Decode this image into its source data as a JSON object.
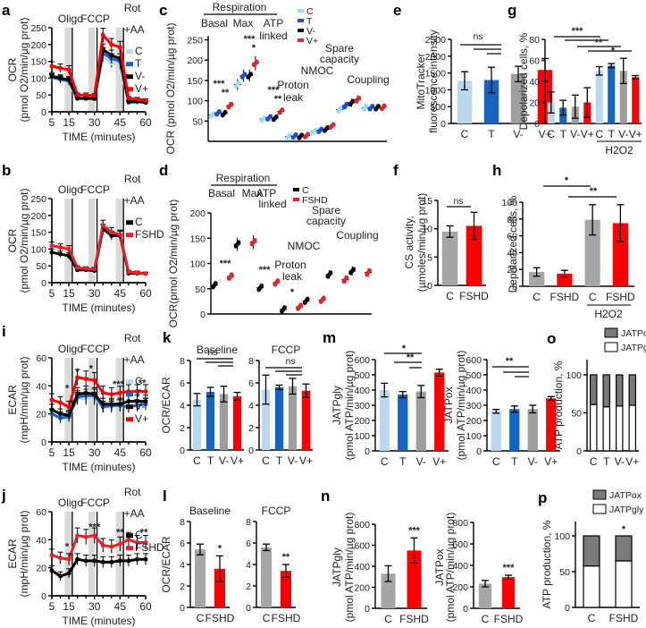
{
  "colors": {
    "C": "#bcd8ef",
    "T": "#1565c0",
    "Vm": "#9e9e9e",
    "Vp": "#ff0000",
    "Cgray": "#a6a6a6",
    "FSHD": "#ff0000",
    "black": "#000000",
    "red": "#e8212a",
    "cyan": "#8fe3f0",
    "blue": "#1f4fd1",
    "JATPox": "#7a7a7a",
    "JATPgly": "#ffffff",
    "shade": "#d9d9d9"
  },
  "chart_data": [
    {
      "id": "a",
      "panel": "a",
      "type": "line",
      "xlabel": "TIME (minutes)",
      "ylabel": "OCR",
      "ylabel2": "(pmol O2/min/µg prot)",
      "xticks": [
        5,
        15,
        30,
        45,
        60
      ],
      "yticks": [
        0,
        50,
        100,
        150,
        200,
        250
      ],
      "xlim": [
        5,
        60
      ],
      "ylim": [
        0,
        250
      ],
      "injections": [
        {
          "label": "Oligo",
          "x": 17.5
        },
        {
          "label": "FCCP",
          "x": 32.5
        },
        {
          "label": "Rot",
          "label2": "+AA",
          "x": 47.5
        }
      ],
      "legend": [
        "C",
        "T",
        "V-",
        "V+"
      ],
      "x": [
        5,
        10,
        15,
        20,
        25,
        30,
        35,
        40,
        45,
        50,
        55,
        60
      ],
      "series": [
        {
          "name": "C",
          "color": "#bcd8ef",
          "values": [
            100,
            95,
            88,
            38,
            38,
            38,
            165,
            145,
            140,
            28,
            28,
            27
          ]
        },
        {
          "name": "T",
          "color": "#1565c0",
          "values": [
            103,
            97,
            92,
            40,
            40,
            40,
            175,
            158,
            150,
            28,
            30,
            28
          ]
        },
        {
          "name": "V-",
          "color": "#000000",
          "values": [
            106,
            100,
            95,
            40,
            40,
            39,
            185,
            168,
            158,
            30,
            32,
            28
          ]
        },
        {
          "name": "V+",
          "color": "#ff0000",
          "values": [
            136,
            130,
            125,
            50,
            50,
            48,
            228,
            200,
            192,
            40,
            38,
            34
          ]
        }
      ]
    },
    {
      "id": "b",
      "panel": "b",
      "type": "line",
      "xlabel": "TIME (minutes)",
      "ylabel": "OCR",
      "ylabel2": "(pmol O2/min/µg prot)",
      "xticks": [
        5,
        15,
        30,
        45,
        60
      ],
      "yticks": [
        0,
        50,
        100,
        150,
        200,
        250
      ],
      "xlim": [
        5,
        60
      ],
      "ylim": [
        0,
        250
      ],
      "injections": [
        {
          "label": "Oligo",
          "x": 17.5
        },
        {
          "label": "FCCP",
          "x": 32.5
        },
        {
          "label": "Rot",
          "label2": "+AA",
          "x": 47.5
        }
      ],
      "legend": [
        "C",
        "FSHD"
      ],
      "x": [
        5,
        10,
        15,
        20,
        25,
        30,
        35,
        40,
        45,
        50,
        55,
        60
      ],
      "series": [
        {
          "name": "C",
          "color": "#000000",
          "values": [
            90,
            85,
            80,
            38,
            38,
            36,
            160,
            140,
            140,
            28,
            28,
            27
          ]
        },
        {
          "name": "FSHD",
          "color": "#e8212a",
          "values": [
            110,
            105,
            100,
            45,
            42,
            40,
            170,
            150,
            143,
            32,
            30,
            27
          ]
        }
      ]
    },
    {
      "id": "c",
      "panel": "c",
      "type": "scatter",
      "ylabel": "OCR (pmol O2/min/µg prot)",
      "yticks": [
        50,
        100,
        150,
        200,
        250
      ],
      "ylim": [
        0,
        260
      ],
      "header": "Respiration",
      "legend": [
        "C",
        "T",
        "V-",
        "V+"
      ],
      "groups": [
        {
          "label": "Basal",
          "means": [
            65,
            70,
            68,
            88
          ],
          "sig": [
            "***",
            "**"
          ]
        },
        {
          "label": "Max",
          "means": [
            140,
            162,
            162,
            192
          ],
          "sig": [
            "***",
            "*"
          ]
        },
        {
          "label": "ATP linked",
          "means": [
            55,
            58,
            57,
            74
          ],
          "sig": [
            "***",
            "**"
          ]
        },
        {
          "label": "Proton leak",
          "means": [
            12,
            13,
            12,
            14
          ]
        },
        {
          "label": "NMOC",
          "means": [
            24,
            27,
            30,
            38
          ]
        },
        {
          "label": "Spare capacity",
          "means": [
            78,
            88,
            95,
            103
          ]
        },
        {
          "label": "Coupling",
          "means": [
            83,
            83,
            83,
            84
          ]
        }
      ]
    },
    {
      "id": "d",
      "panel": "d",
      "type": "scatter",
      "ylabel": "OCR(pmol O2/min/µg prot)",
      "yticks": [
        0,
        50,
        100,
        150,
        200
      ],
      "ylim": [
        0,
        200
      ],
      "header": "Respiration",
      "legend": [
        "C",
        "FSHD"
      ],
      "groups": [
        {
          "label": "Basal",
          "means": [
            57,
            74
          ],
          "sig": "***"
        },
        {
          "label": "Max",
          "means": [
            138,
            142
          ]
        },
        {
          "label": "ATP linked",
          "means": [
            52,
            62
          ],
          "sig": "***"
        },
        {
          "label": "Proton leak",
          "means": [
            9,
            14
          ],
          "sig": "*"
        },
        {
          "label": "NMOC",
          "means": [
            26,
            28
          ]
        },
        {
          "label": "Spare capacity",
          "means": [
            78,
            68
          ]
        },
        {
          "label": "Coupling",
          "means": [
            85,
            82
          ]
        }
      ]
    },
    {
      "id": "e",
      "panel": "e",
      "type": "bar",
      "ylabel": "MitoTracker",
      "ylabel2": "fluorescence intensity",
      "categories": [
        "C",
        "T",
        "V-",
        "V+"
      ],
      "values": [
        1270,
        1290,
        1470,
        1590
      ],
      "errors": [
        270,
        380,
        230,
        340
      ],
      "yticks": [
        0,
        500,
        1000,
        1500,
        2000,
        2500
      ],
      "ylim": [
        0,
        2500
      ],
      "sig": "ns"
    },
    {
      "id": "f",
      "panel": "f",
      "type": "bar",
      "ylabel": "CS activity,",
      "ylabel2": "(µmoles/min/µg prot)",
      "categories": [
        "C",
        "FSHD"
      ],
      "values": [
        9.5,
        10.5
      ],
      "errors": [
        1.0,
        2.4
      ],
      "yticks": [
        0,
        5,
        10,
        15
      ],
      "ylim": [
        0,
        15
      ],
      "sig": "ns"
    },
    {
      "id": "g",
      "panel": "g",
      "type": "bar",
      "ylabel": "Depolarized cells, %",
      "categories": [
        "C",
        "T",
        "V-",
        "V+",
        "C",
        "T",
        "V-",
        "V+"
      ],
      "group_label": "H2O2",
      "values": [
        20,
        15,
        16,
        20,
        50,
        55,
        50,
        44
      ],
      "errors": [
        10,
        7,
        11,
        14,
        4,
        2,
        12,
        1.5
      ],
      "yticks": [
        0,
        20,
        40,
        60,
        80
      ],
      "ylim": [
        0,
        80
      ],
      "sig": [
        "***",
        "**",
        "*"
      ]
    },
    {
      "id": "h",
      "panel": "h",
      "type": "bar",
      "ylabel": "Depolarized cells, %",
      "categories": [
        "C",
        "FSHD",
        "C",
        "FSHD"
      ],
      "group_label": "H2O2",
      "values": [
        17,
        15,
        79,
        75
      ],
      "errors": [
        5,
        4,
        18,
        22
      ],
      "yticks": [
        0,
        20,
        40,
        60,
        80,
        100
      ],
      "ylim": [
        0,
        100
      ],
      "sig": [
        "*",
        "**"
      ]
    },
    {
      "id": "i",
      "panel": "i",
      "type": "line",
      "xlabel": "TIME (minutes)",
      "ylabel": "ECAR",
      "ylabel2": "(mpH/min/µg prot)",
      "xticks": [
        5,
        15,
        30,
        45,
        60
      ],
      "yticks": [
        0,
        20,
        40,
        60
      ],
      "xlim": [
        5,
        60
      ],
      "ylim": [
        0,
        60
      ],
      "injections": [
        {
          "label": "Oligo",
          "x": 17.5
        },
        {
          "label": "FCCP",
          "x": 32.5
        },
        {
          "label": "Rot",
          "label2": "+AA",
          "x": 47.5
        }
      ],
      "legend": [
        "C",
        "T",
        "V-",
        "V+"
      ],
      "sig_marks": [
        "*",
        "*",
        "*",
        "***",
        "**"
      ],
      "x": [
        5,
        10,
        15,
        20,
        25,
        30,
        35,
        40,
        45,
        50,
        55,
        60
      ],
      "series": [
        {
          "name": "C",
          "color": "#bcd8ef",
          "values": [
            20,
            18,
            18,
            31,
            31,
            31,
            25,
            25,
            26,
            25,
            26,
            27
          ]
        },
        {
          "name": "T",
          "color": "#1565c0",
          "values": [
            20,
            17,
            18,
            32,
            33,
            33,
            25,
            26,
            26,
            25,
            26,
            27
          ]
        },
        {
          "name": "V-",
          "color": "#000000",
          "values": [
            23,
            20,
            19,
            34,
            35,
            34,
            27,
            27,
            27,
            29,
            29,
            29
          ]
        },
        {
          "name": "V+",
          "color": "#ff0000",
          "values": [
            30,
            28,
            25,
            46,
            45,
            44,
            35,
            34,
            35,
            36,
            36,
            36
          ]
        }
      ]
    },
    {
      "id": "j",
      "panel": "j",
      "type": "line",
      "xlabel": "TIME (minutes)",
      "ylabel": "ECAR",
      "ylabel2": "(mpH/min/µg prot)",
      "xticks": [
        5,
        15,
        30,
        45,
        60
      ],
      "yticks": [
        0,
        20,
        40,
        60
      ],
      "xlim": [
        5,
        60
      ],
      "ylim": [
        0,
        60
      ],
      "injections": [
        {
          "label": "Oligo",
          "x": 17.5
        },
        {
          "label": "FCCP",
          "x": 32.5
        },
        {
          "label": "Rot",
          "label2": "+AA",
          "x": 47.5
        }
      ],
      "legend": [
        "C",
        "FSHD"
      ],
      "sig_marks": [
        "*",
        "***",
        "**",
        "**"
      ],
      "x": [
        5,
        10,
        15,
        20,
        25,
        30,
        35,
        40,
        45,
        50,
        55,
        60
      ],
      "series": [
        {
          "name": "C",
          "color": "#000000",
          "values": [
            18,
            14,
            16,
            26,
            25,
            25,
            24,
            24,
            25,
            25,
            26,
            26
          ]
        },
        {
          "name": "FSHD",
          "color": "#e8212a",
          "values": [
            29,
            27,
            26,
            43,
            42,
            43,
            36,
            35,
            37,
            40,
            38,
            38
          ]
        }
      ]
    },
    {
      "id": "k1",
      "panel": "k",
      "type": "bar",
      "title": "Baseline",
      "ylabel": "OCR/ECAR",
      "categories": [
        "C",
        "T",
        "V-",
        "V+"
      ],
      "values": [
        4.5,
        5.2,
        5.0,
        4.8
      ],
      "errors": [
        0.55,
        0.4,
        0.7,
        0.35
      ],
      "yticks": [
        0,
        2,
        4,
        6,
        8
      ],
      "ylim": [
        0,
        8
      ],
      "sig": "ns"
    },
    {
      "id": "k2",
      "panel": "",
      "type": "bar",
      "title": "FCCP",
      "categories": [
        "C",
        "T",
        "V-",
        "V+"
      ],
      "values": [
        5.4,
        5.6,
        5.7,
        5.3
      ],
      "errors": [
        1.3,
        0.2,
        0.7,
        0.6
      ],
      "yticks": [
        0,
        2,
        4,
        6,
        8
      ],
      "ylim": [
        0,
        8
      ],
      "sig": "ns"
    },
    {
      "id": "l1",
      "panel": "l",
      "type": "bar",
      "title": "Baseline",
      "ylabel": "OCR/ECAR",
      "categories": [
        "C",
        "FSHD"
      ],
      "values": [
        5.4,
        3.6
      ],
      "errors": [
        0.5,
        1.2
      ],
      "yticks": [
        0,
        2,
        4,
        6,
        8
      ],
      "ylim": [
        0,
        8
      ],
      "sig_each": [
        "",
        "*"
      ]
    },
    {
      "id": "l2",
      "panel": "",
      "type": "bar",
      "title": "FCCP",
      "categories": [
        "C",
        "FSHD"
      ],
      "values": [
        5.6,
        3.4
      ],
      "errors": [
        0.3,
        0.6
      ],
      "yticks": [
        0,
        2,
        4,
        6,
        8
      ],
      "ylim": [
        0,
        8
      ],
      "sig_each": [
        "",
        "**"
      ]
    },
    {
      "id": "m1",
      "panel": "m",
      "type": "bar",
      "ylabel": "JATPgly",
      "ylabel2": "(pmol ATP/min/µg prot)",
      "categories": [
        "C",
        "T",
        "V-",
        "V+"
      ],
      "values": [
        400,
        370,
        390,
        515
      ],
      "errors": [
        45,
        20,
        40,
        22
      ],
      "yticks": [
        0,
        100,
        200,
        300,
        400,
        500,
        600
      ],
      "ylim": [
        0,
        600
      ],
      "sig": [
        "*",
        "**"
      ]
    },
    {
      "id": "m2",
      "panel": "",
      "type": "bar",
      "ylabel": "JATPox",
      "ylabel2": "(pmol ATP/min/µg prot)",
      "categories": [
        "C",
        "T",
        "V-",
        "V+"
      ],
      "values": [
        260,
        275,
        275,
        345
      ],
      "errors": [
        12,
        20,
        25,
        12
      ],
      "yticks": [
        0,
        100,
        200,
        300,
        400,
        500,
        600
      ],
      "ylim": [
        0,
        600
      ],
      "sig": [
        "**"
      ]
    },
    {
      "id": "n1",
      "panel": "n",
      "type": "bar",
      "ylabel": "JATPgly",
      "ylabel2": "(pmol ATP/min/µg prot)",
      "categories": [
        "C",
        "FSHD"
      ],
      "values": [
        330,
        550
      ],
      "errors": [
        75,
        120
      ],
      "yticks": [
        0,
        200,
        400,
        600,
        800
      ],
      "ylim": [
        0,
        800
      ],
      "sig_each": [
        "",
        "***"
      ]
    },
    {
      "id": "n2",
      "panel": "",
      "type": "bar",
      "ylabel": "JATPox",
      "ylabel2": "(pmol ATP/min/µg prot)",
      "categories": [
        "C",
        "FSHD"
      ],
      "values": [
        230,
        290
      ],
      "errors": [
        30,
        18
      ],
      "yticks": [
        0,
        200,
        400,
        600,
        800
      ],
      "ylim": [
        0,
        800
      ],
      "sig_each": [
        "",
        "***"
      ]
    },
    {
      "id": "o",
      "panel": "o",
      "type": "stacked-bar",
      "ylabel": "ATP production, %",
      "categories": [
        "C",
        "T",
        "V-",
        "V+"
      ],
      "series": [
        {
          "name": "JATPgly",
          "values": [
            61,
            58,
            59,
            60
          ]
        },
        {
          "name": "JATPox",
          "values": [
            39,
            42,
            41,
            40
          ]
        }
      ],
      "yticks": [
        0,
        50,
        100
      ],
      "ylim": [
        0,
        120
      ],
      "legend": [
        "JATPox",
        "JATPgly"
      ]
    },
    {
      "id": "p",
      "panel": "p",
      "type": "stacked-bar",
      "ylabel": "ATP production, %",
      "categories": [
        "C",
        "FSHD"
      ],
      "series": [
        {
          "name": "JATPgly",
          "values": [
            58,
            65
          ]
        },
        {
          "name": "JATPox",
          "values": [
            42,
            35
          ]
        }
      ],
      "yticks": [
        0,
        50,
        100
      ],
      "ylim": [
        0,
        120
      ],
      "legend": [
        "JATPox",
        "JATPgly"
      ],
      "sig_each": [
        "",
        "*"
      ]
    }
  ]
}
